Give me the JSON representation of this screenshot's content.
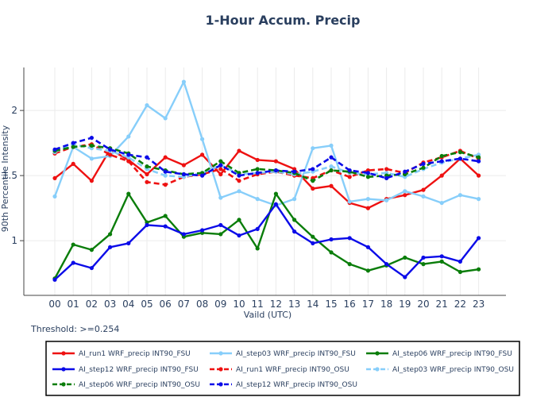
{
  "chart_data": {
    "type": "line",
    "title": "1-Hour Accum. Precip",
    "xlabel": "Vaild (UTC)",
    "ylabel": "90th Percentile Intensity",
    "annotation": "Threshold: >=0.254",
    "categories": [
      "00",
      "01",
      "02",
      "03",
      "04",
      "05",
      "06",
      "07",
      "08",
      "09",
      "10",
      "11",
      "12",
      "13",
      "14",
      "15",
      "16",
      "17",
      "18",
      "19",
      "20",
      "21",
      "22",
      "23"
    ],
    "yticks": [
      "1",
      "1.5",
      "2"
    ],
    "ylim": [
      0.58,
      2.33
    ],
    "grid": true,
    "legend_position": "bottom",
    "series": [
      {
        "name": "AI_run1 WRF_precip INT90_FSU",
        "color": "#ee1111",
        "dash": false,
        "values": [
          1.48,
          1.59,
          1.46,
          1.7,
          1.62,
          1.51,
          1.64,
          1.58,
          1.66,
          1.51,
          1.69,
          1.62,
          1.61,
          1.55,
          1.4,
          1.42,
          1.29,
          1.25,
          1.32,
          1.35,
          1.39,
          1.5,
          1.63,
          1.5
        ]
      },
      {
        "name": "AI_step03 WRF_precip INT90_FSU",
        "color": "#87cefa",
        "dash": false,
        "values": [
          1.34,
          1.72,
          1.63,
          1.65,
          1.8,
          2.04,
          1.94,
          2.22,
          1.78,
          1.33,
          1.38,
          1.32,
          1.27,
          1.32,
          1.71,
          1.73,
          1.3,
          1.32,
          1.31,
          1.38,
          1.34,
          1.29,
          1.35,
          1.32
        ]
      },
      {
        "name": "AI_step06 WRF_precip INT90_FSU",
        "color": "#0a7d0a",
        "dash": false,
        "values": [
          0.71,
          0.97,
          0.93,
          1.05,
          1.36,
          1.14,
          1.19,
          1.03,
          1.06,
          1.05,
          1.16,
          0.94,
          1.36,
          1.16,
          1.03,
          0.91,
          0.82,
          0.77,
          0.81,
          0.87,
          0.82,
          0.84,
          0.76,
          0.78
        ]
      },
      {
        "name": "AI_step12 WRF_precip INT90_FSU",
        "color": "#0b0be8",
        "dash": false,
        "values": [
          0.7,
          0.83,
          0.79,
          0.95,
          0.98,
          1.12,
          1.11,
          1.05,
          1.08,
          1.12,
          1.04,
          1.09,
          1.28,
          1.07,
          0.98,
          1.01,
          1.02,
          0.95,
          0.82,
          0.72,
          0.87,
          0.88,
          0.84,
          1.02
        ]
      },
      {
        "name": "AI_run1 WRF_precip INT90_OSU",
        "color": "#ee1111",
        "dash": true,
        "values": [
          1.67,
          1.72,
          1.74,
          1.66,
          1.61,
          1.45,
          1.43,
          1.49,
          1.51,
          1.55,
          1.46,
          1.51,
          1.53,
          1.5,
          1.48,
          1.54,
          1.49,
          1.54,
          1.55,
          1.52,
          1.6,
          1.64,
          1.69,
          1.63
        ]
      },
      {
        "name": "AI_step03 WRF_precip INT90_OSU",
        "color": "#87cefa",
        "dash": true,
        "values": [
          1.68,
          1.74,
          1.71,
          1.69,
          1.64,
          1.55,
          1.5,
          1.49,
          1.52,
          1.58,
          1.51,
          1.52,
          1.53,
          1.51,
          1.53,
          1.57,
          1.52,
          1.51,
          1.52,
          1.49,
          1.55,
          1.6,
          1.63,
          1.66
        ]
      },
      {
        "name": "AI_step06 WRF_precip INT90_OSU",
        "color": "#0a7d0a",
        "dash": true,
        "values": [
          1.69,
          1.72,
          1.73,
          1.71,
          1.67,
          1.57,
          1.54,
          1.51,
          1.52,
          1.61,
          1.52,
          1.55,
          1.54,
          1.52,
          1.46,
          1.54,
          1.53,
          1.49,
          1.5,
          1.51,
          1.56,
          1.65,
          1.68,
          1.64
        ]
      },
      {
        "name": "AI_step12 WRF_precip INT90_OSU",
        "color": "#0b0be8",
        "dash": true,
        "values": [
          1.7,
          1.75,
          1.79,
          1.7,
          1.66,
          1.64,
          1.53,
          1.51,
          1.5,
          1.58,
          1.5,
          1.52,
          1.54,
          1.53,
          1.55,
          1.64,
          1.54,
          1.52,
          1.48,
          1.53,
          1.59,
          1.61,
          1.63,
          1.61
        ]
      }
    ]
  }
}
